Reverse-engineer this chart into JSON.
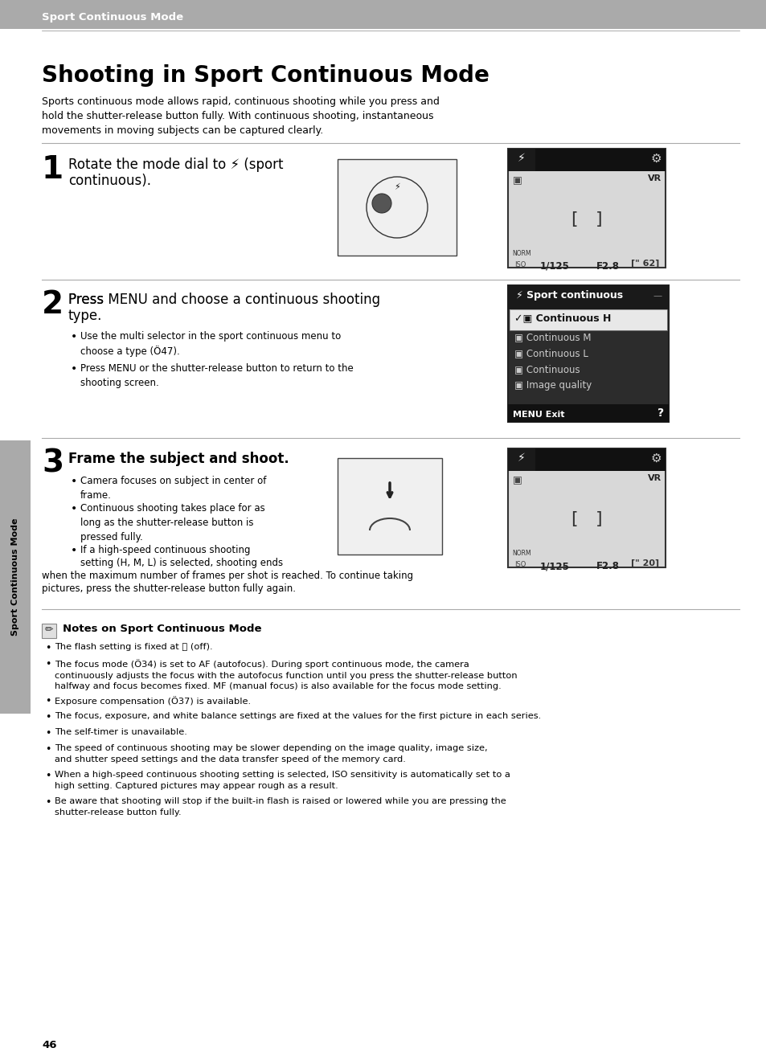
{
  "page_bg": "#ffffff",
  "header_bg": "#aaaaaa",
  "header_text": "Sport Continuous Mode",
  "title": "Shooting in Sport Continuous Mode",
  "intro_lines": [
    "Sports continuous mode allows rapid, continuous shooting while you press and",
    "hold the shutter-release button fully. With continuous shooting, instantaneous",
    "movements in moving subjects can be captured clearly."
  ],
  "step1_head_line1": "Rotate the mode dial to ⚡ (sport",
  "step1_head_line2": "continuous).",
  "step2_head": "Press MENU and choose a continuous shooting\ntype.",
  "step2_b1": "Use the multi selector in the sport continuous menu to\nchoose a type (Ö47).",
  "step2_b2": "Press MENU or the shutter-release button to return to the\nshooting screen.",
  "step3_head": "Frame the subject and shoot.",
  "step3_b1": "Camera focuses on subject in center of\nframe.",
  "step3_b2": "Continuous shooting takes place for as\nlong as the shutter-release button is\npressed fully.",
  "step3_b3_line1": "If a high-speed continuous shooting",
  "step3_b3_line2": "setting (H, M, L) is selected, shooting ends",
  "step3_b3_line3": "when the maximum number of frames per shot is reached. To continue taking",
  "step3_b3_line4": "pictures, press the shutter-release button fully again.",
  "menu_title": "Sport continuous",
  "menu_item_selected": "Continuous H",
  "menu_items": [
    "Continuous M",
    "Continuous L",
    "Continuous",
    "Image quality"
  ],
  "notes_title": "Notes on Sport Continuous Mode",
  "notes_bullets": [
    "The flash setting is fixed at ⓧ (off).",
    "The focus mode (Ö34) is set to AF (autofocus). During sport continuous mode, the camera\ncontinuously adjusts the focus with the autofocus function until you press the shutter-release button\nhalfway and focus becomes fixed. MF (manual focus) is also available for the focus mode setting.",
    "Exposure compensation (Ö37) is available.",
    "The focus, exposure, and white balance settings are fixed at the values for the first picture in each series.",
    "The self-timer is unavailable.",
    "The speed of continuous shooting may be slower depending on the image quality, image size,\nand shutter speed settings and the data transfer speed of the memory card.",
    "When a high-speed continuous shooting setting is selected, ISO sensitivity is automatically set to a\nhigh setting. Captured pictures may appear rough as a result.",
    "Be aware that shooting will stop if the built-in flash is raised or lowered while you are pressing the\nshutter-release button fully."
  ],
  "page_num": "46",
  "sidebar_text": "Sport Continuous Mode"
}
